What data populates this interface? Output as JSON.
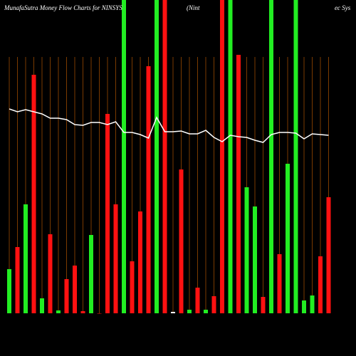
{
  "chart_data": {
    "type": "bar",
    "title": "MunafaSutra  Money Flow  Charts for NINSYS",
    "subtitle": "(Nint",
    "note": "ec Sys",
    "ylim": [
      0,
      440
    ],
    "values": [
      62,
      93,
      153,
      335,
      21,
      111,
      4,
      48,
      67,
      3,
      110,
      0,
      280,
      153,
      440,
      73,
      143,
      347,
      440,
      440,
      2,
      202,
      5,
      36,
      5,
      24,
      440,
      440,
      363,
      177,
      150,
      23,
      440,
      83,
      210,
      440,
      18,
      25,
      80,
      163
    ],
    "colors": [
      "#22ee22",
      "#ff1111",
      "#22ee22",
      "#ff1111",
      "#22ee22",
      "#ff1111",
      "#22ee22",
      "#ff1111",
      "#ff1111",
      "#ff1111",
      "#22ee22",
      "#ff1111",
      "#ff1111",
      "#ff1111",
      "#22ee22",
      "#ff1111",
      "#ff1111",
      "#ff1111",
      "#22ee22",
      "#ff1111",
      "#ffffff",
      "#ff1111",
      "#22ee22",
      "#ff1111",
      "#22ee22",
      "#ff1111",
      "#ff1111",
      "#22ee22",
      "#ff1111",
      "#22ee22",
      "#22ee22",
      "#ff1111",
      "#22ee22",
      "#ff1111",
      "#22ee22",
      "#22ee22",
      "#22ee22",
      "#22ee22",
      "#ff1111",
      "#ff1111"
    ],
    "line": {
      "color": "#ffffff",
      "values": [
        287,
        283,
        286,
        283,
        280,
        274,
        274,
        272,
        265,
        264,
        268,
        268,
        265,
        269,
        254,
        254,
        251,
        246,
        275,
        255,
        255,
        256,
        252,
        252,
        257,
        247,
        241,
        250,
        248,
        247,
        243,
        240,
        251,
        254,
        254,
        253,
        245,
        252,
        251,
        250
      ]
    },
    "grid_color": "#7a3a00"
  }
}
